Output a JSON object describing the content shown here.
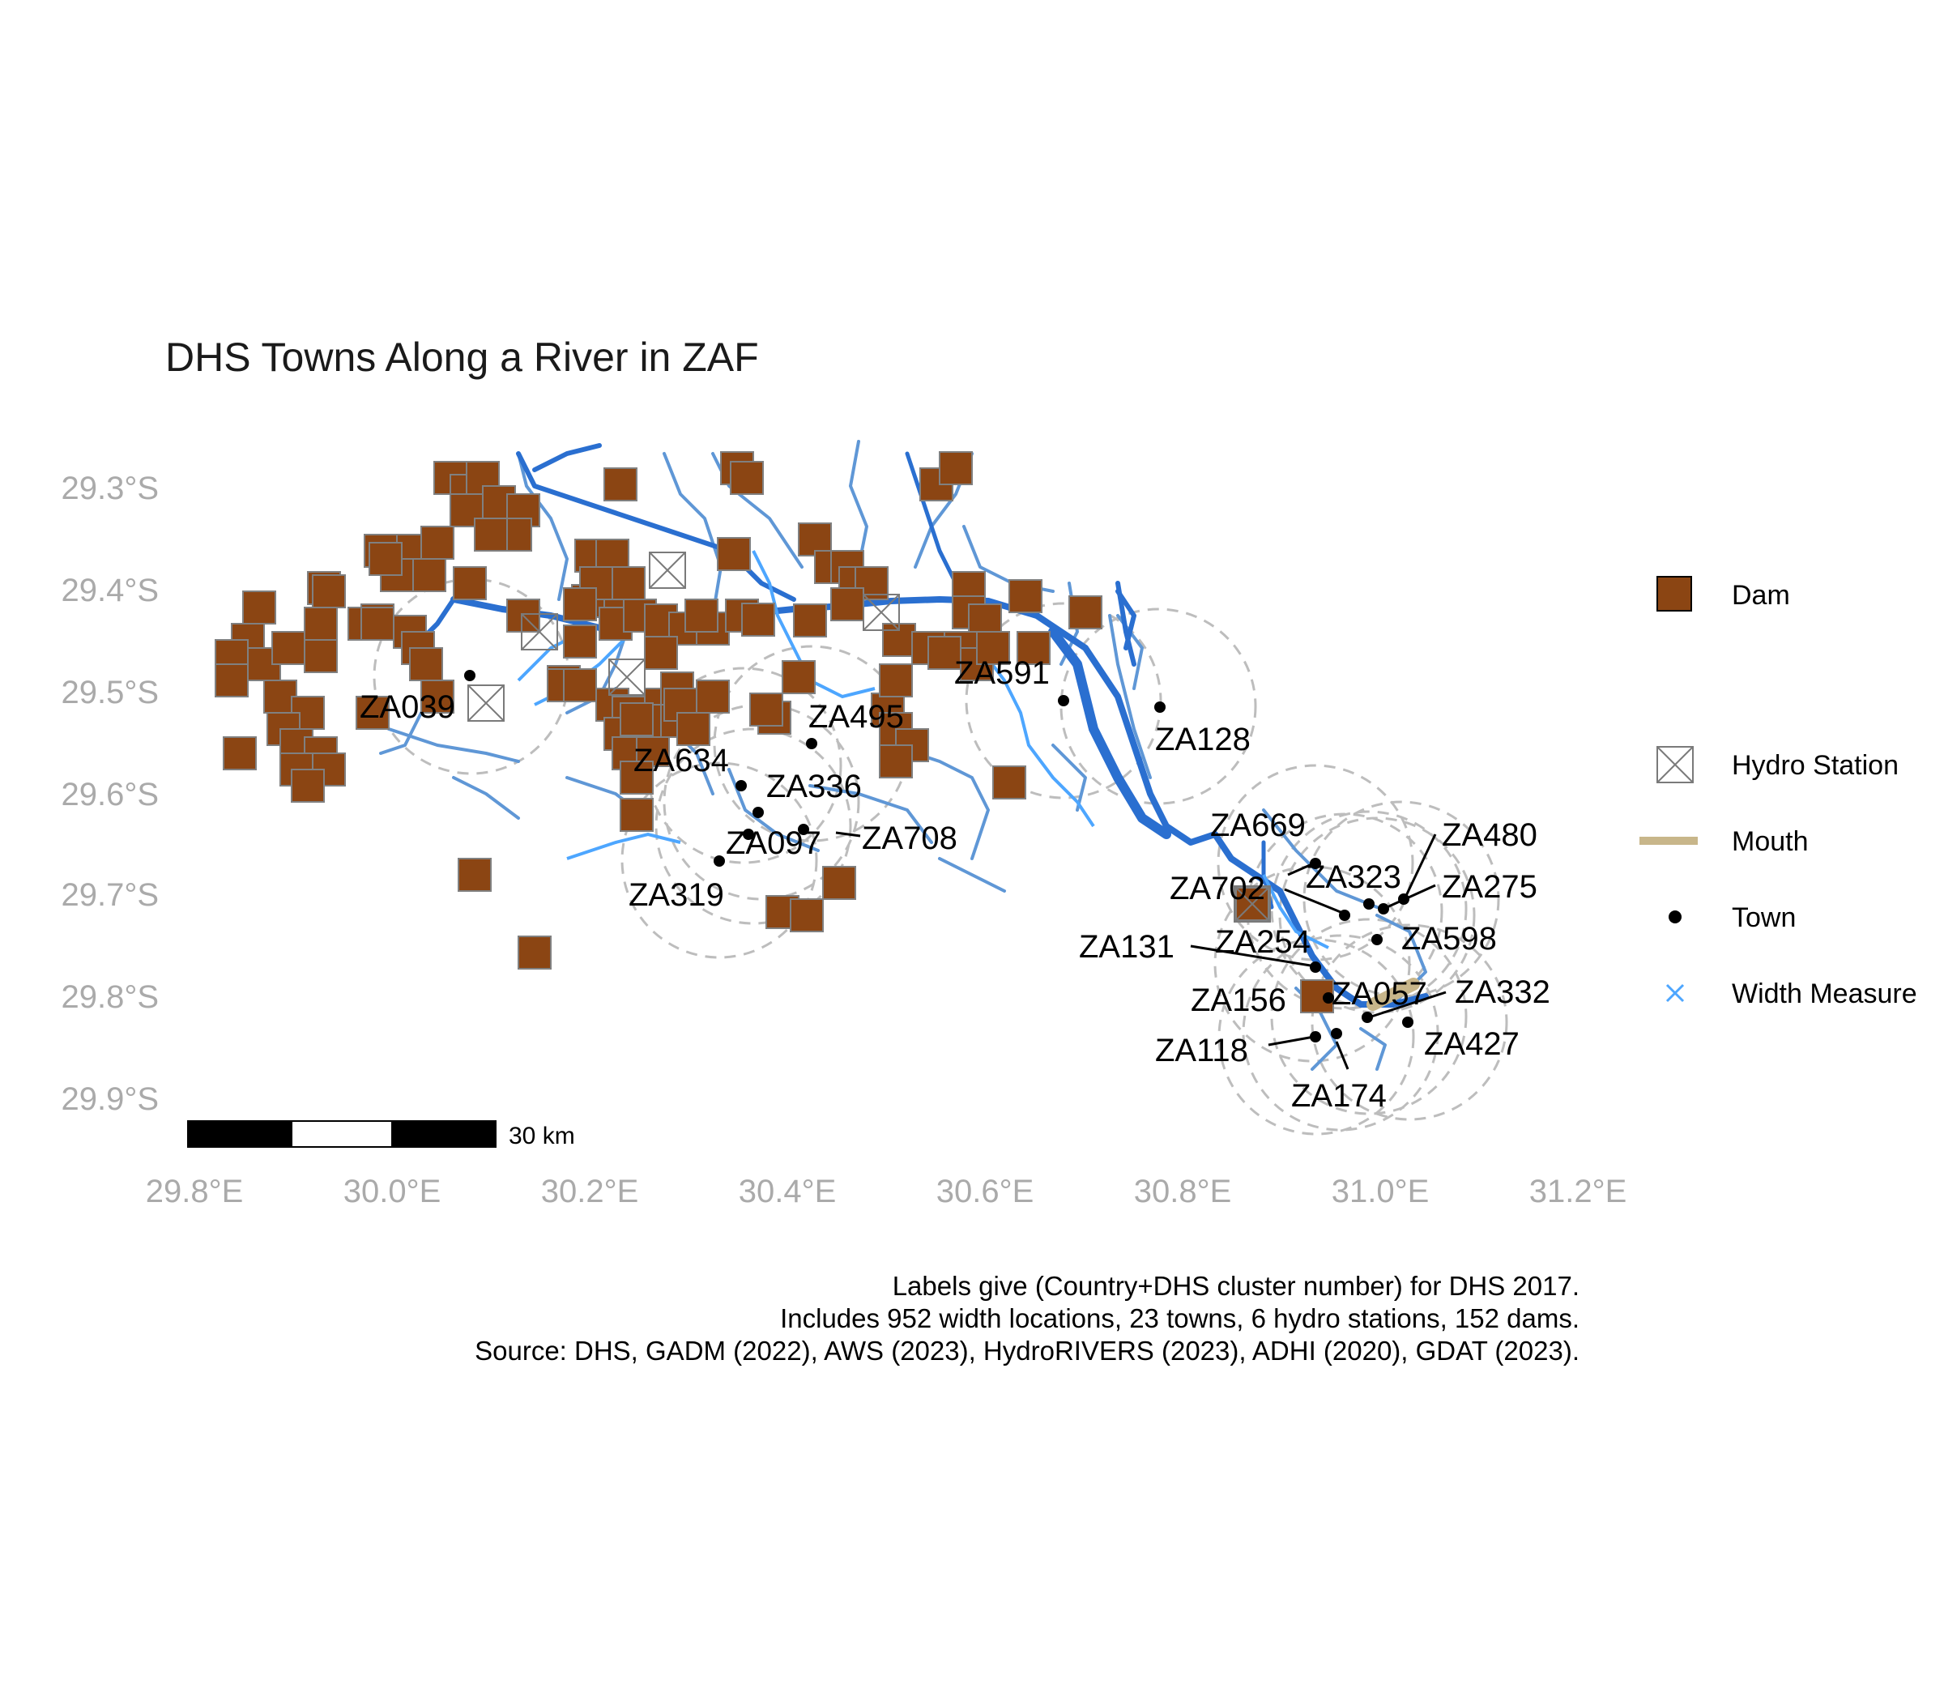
{
  "title": "DHS Towns Along a River in ZAF",
  "axes": {
    "lat_ticks": [
      "29.3°S",
      "29.4°S",
      "29.5°S",
      "29.6°S",
      "29.7°S",
      "29.8°S",
      "29.9°S"
    ],
    "lon_ticks": [
      "29.8°E",
      "30.0°E",
      "30.2°E",
      "30.4°E",
      "30.6°E",
      "30.8°E",
      "31.0°E",
      "31.2°E"
    ]
  },
  "legend": [
    {
      "key": "dam",
      "label": "Dam"
    },
    {
      "key": "hydro",
      "label": "Hydro Station"
    },
    {
      "key": "mouth",
      "label": "Mouth"
    },
    {
      "key": "town",
      "label": "Town"
    },
    {
      "key": "width",
      "label": "Width Measure"
    }
  ],
  "scale_bar": {
    "label": "30 km"
  },
  "caption": [
    "Labels give (Country+DHS cluster number) for DHS 2017.",
    "Includes 952 width locations, 23 towns, 6 hydro stations, 152 dams.",
    "Source: DHS, GADM (2022), AWS (2023), HydroRIVERS (2023), ADHI (2020), GDAT (2023)."
  ],
  "colors": {
    "dam_fill": "#8B4513",
    "dam_stroke": "#808080",
    "river_main": "#2a6fd0",
    "river_light": "#5aa0f0",
    "width_measure": "#4da6ff",
    "mouth": "#c8b68a",
    "town": "#000000",
    "buffer": "#bdbdbd",
    "axis_text": "#aaaaaa"
  },
  "chart_data": {
    "type": "map",
    "title": "DHS Towns Along a River in ZAF",
    "xlim": [
      29.8,
      31.2
    ],
    "ylim": [
      -29.95,
      -29.25
    ],
    "towns": [
      {
        "label": "ZA039",
        "lon": 30.08,
        "lat": -29.485
      },
      {
        "label": "ZA495",
        "lon": 30.425,
        "lat": -29.55
      },
      {
        "label": "ZA634",
        "lon": 30.355,
        "lat": -29.595
      },
      {
        "label": "ZA336",
        "lon": 30.37,
        "lat": -29.62
      },
      {
        "label": "ZA097",
        "lon": 30.415,
        "lat": -29.635
      },
      {
        "label": "ZA708",
        "lon": 30.36,
        "lat": -29.655
      },
      {
        "label": "ZA319",
        "lon": 30.33,
        "lat": -29.665
      },
      {
        "label": "ZA591",
        "lon": 30.68,
        "lat": -29.51
      },
      {
        "label": "ZA128",
        "lon": 30.775,
        "lat": -29.515
      },
      {
        "label": "ZA669",
        "lon": 30.93,
        "lat": -29.675
      },
      {
        "label": "ZA323",
        "lon": 30.985,
        "lat": -29.71
      },
      {
        "label": "ZA480",
        "lon": 31.02,
        "lat": -29.705
      },
      {
        "label": "ZA702",
        "lon": 30.96,
        "lat": -29.72
      },
      {
        "label": "ZA275",
        "lon": 31.0,
        "lat": -29.715
      },
      {
        "label": "ZA598",
        "lon": 30.995,
        "lat": -29.745
      },
      {
        "label": "ZA131",
        "lon": 30.93,
        "lat": -29.775
      },
      {
        "label": "ZA254",
        "lon": 30.93,
        "lat": -29.77
      },
      {
        "label": "ZA156",
        "lon": 30.935,
        "lat": -29.815
      },
      {
        "label": "ZA057",
        "lon": 30.985,
        "lat": -29.82
      },
      {
        "label": "ZA332",
        "lon": 30.99,
        "lat": -29.82
      },
      {
        "label": "ZA427",
        "lon": 31.025,
        "lat": -29.825
      },
      {
        "label": "ZA118",
        "lon": 30.93,
        "lat": -29.84
      },
      {
        "label": "ZA174",
        "lon": 30.95,
        "lat": -29.837
      }
    ],
    "hydro_stations": [
      {
        "lon": 30.09,
        "lat": -29.51
      },
      {
        "lon": 30.15,
        "lat": -29.44
      },
      {
        "lon": 30.23,
        "lat": -29.49
      },
      {
        "lon": 30.27,
        "lat": -29.405
      },
      {
        "lon": 30.49,
        "lat": -29.42
      },
      {
        "lon": 30.86,
        "lat": -29.715
      }
    ],
    "mouth": [
      {
        "lon1": 30.99,
        "lat1": -29.81,
        "lon2": 31.05,
        "lat2": -29.785
      }
    ]
  }
}
